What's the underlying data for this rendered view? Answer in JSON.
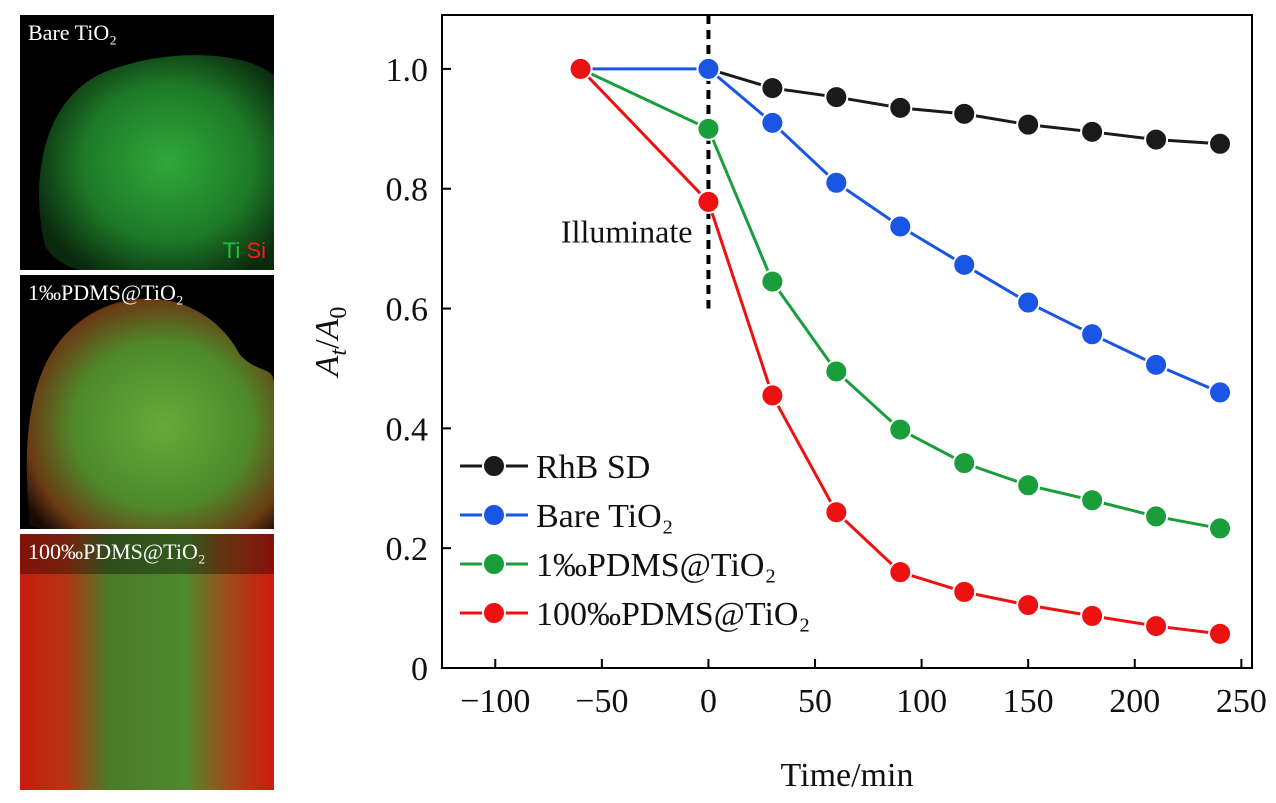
{
  "panels": [
    {
      "label": "Bare TiO₂",
      "legend_ti": "Ti",
      "legend_si": "Si",
      "ti_color": "#22c43a",
      "si_color": "#ff1a1a"
    },
    {
      "label": "1‰PDMS@TiO₂"
    },
    {
      "label": "100‰PDMS@TiO₂"
    }
  ],
  "chart_data": {
    "type": "line",
    "xlabel": "Time/min",
    "ylabel_main": "A",
    "ylabel_sub_t": "t",
    "ylabel_sub_0": "0",
    "ylabel_slash": "/",
    "xlim": [
      -125,
      255
    ],
    "ylim": [
      0,
      1.09
    ],
    "xticks": [
      -100,
      -50,
      0,
      50,
      100,
      150,
      200,
      250
    ],
    "xtick_labels": [
      "−100",
      "−50",
      "0",
      "50",
      "100",
      "150",
      "200",
      "250"
    ],
    "yticks": [
      0,
      0.2,
      0.4,
      0.6,
      0.8,
      1.0
    ],
    "ytick_labels": [
      "0",
      "0.2",
      "0.4",
      "0.6",
      "0.8",
      "1.0"
    ],
    "annotation": "Illuminate",
    "illuminate_x": 0,
    "illuminate_ymin": 0.6,
    "legend_position": "bottom-left",
    "series": [
      {
        "name": "RhB SD",
        "color": "#1a1a1a",
        "x": [
          0,
          30,
          60,
          90,
          120,
          150,
          180,
          210,
          240
        ],
        "y": [
          1.0,
          0.968,
          0.953,
          0.935,
          0.925,
          0.907,
          0.895,
          0.882,
          0.875
        ]
      },
      {
        "name": "Bare TiO₂",
        "color": "#1a55e6",
        "x": [
          -60,
          0,
          30,
          60,
          90,
          120,
          150,
          180,
          210,
          240
        ],
        "y": [
          1.0,
          1.0,
          0.91,
          0.81,
          0.737,
          0.673,
          0.61,
          0.557,
          0.506,
          0.46
        ]
      },
      {
        "name": "1‰PDMS@TiO₂",
        "color": "#1a9e3c",
        "x": [
          -60,
          0,
          30,
          60,
          90,
          120,
          150,
          180,
          210,
          240
        ],
        "y": [
          1.0,
          0.9,
          0.645,
          0.495,
          0.398,
          0.342,
          0.305,
          0.28,
          0.253,
          0.233
        ]
      },
      {
        "name": "100‰PDMS@TiO₂",
        "color": "#ee1111",
        "x": [
          -60,
          0,
          30,
          60,
          90,
          120,
          150,
          180,
          210,
          240
        ],
        "y": [
          1.0,
          0.778,
          0.455,
          0.26,
          0.16,
          0.127,
          0.105,
          0.087,
          0.07,
          0.057
        ]
      }
    ]
  }
}
